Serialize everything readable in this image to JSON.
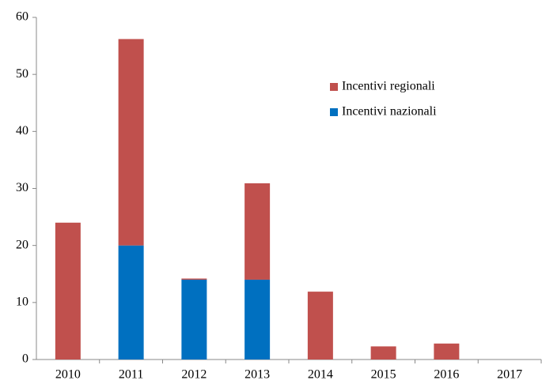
{
  "chart_data": {
    "type": "stacked_bar",
    "categories": [
      "2010",
      "2011",
      "2012",
      "2013",
      "2014",
      "2015",
      "2016",
      "2017"
    ],
    "series": [
      {
        "name": "Incentivi nazionali",
        "color": "#0070c0",
        "values": [
          0,
          20,
          14,
          14,
          0,
          0,
          0,
          0
        ]
      },
      {
        "name": "Incentivi regionali",
        "color": "#c0504d",
        "values": [
          24,
          36.2,
          0.2,
          16.9,
          11.9,
          2.3,
          2.8,
          0
        ]
      }
    ],
    "ylim": [
      0,
      60
    ],
    "yticks": [
      0,
      10,
      20,
      30,
      40,
      50,
      60
    ],
    "grid": false
  }
}
